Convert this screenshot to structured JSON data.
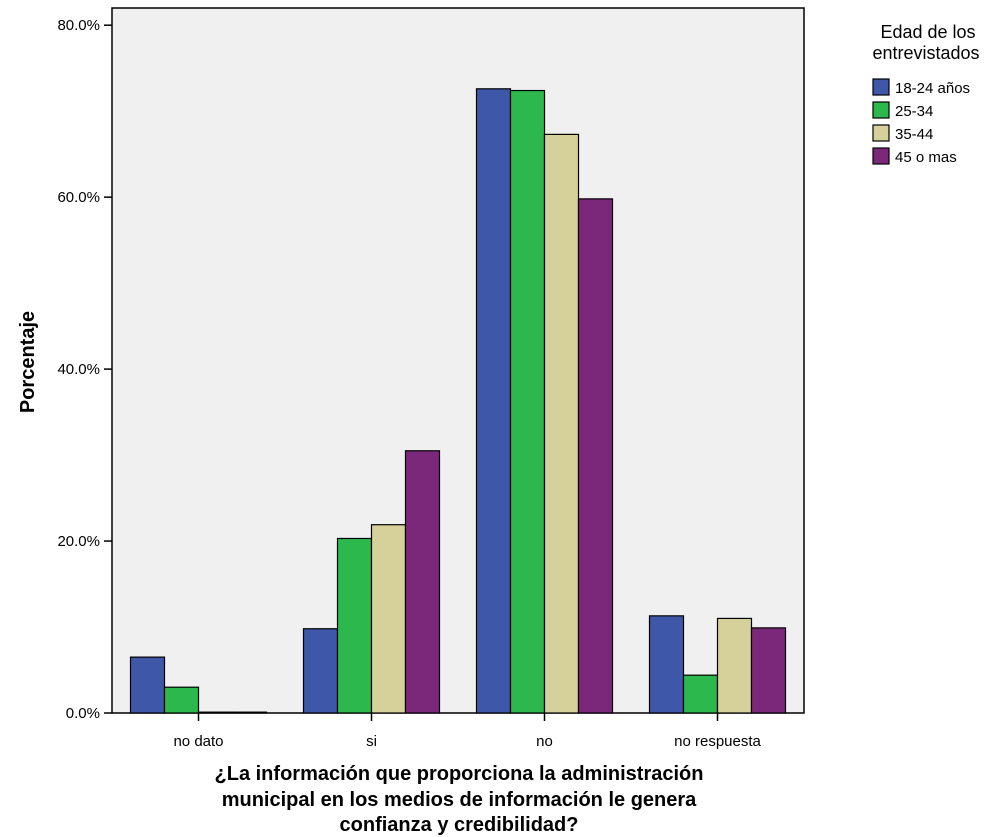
{
  "chart_data": {
    "type": "bar",
    "title": "",
    "xlabel_lines": [
      "¿La información que proporciona la administración",
      "municipal en los medios de información le genera",
      "confianza y credibilidad?"
    ],
    "ylabel": "Porcentaje",
    "ylim": [
      0,
      82
    ],
    "yticks": [
      0,
      20,
      40,
      60,
      80
    ],
    "ytick_labels": [
      "0.0%",
      "20.0%",
      "40.0%",
      "60.0%",
      "80.0%"
    ],
    "categories": [
      "no dato",
      "si",
      "no",
      "no respuesta"
    ],
    "legend_title_lines": [
      "Edad de los",
      "entrevistados"
    ],
    "legend_position": "right",
    "grid": false,
    "plot_background": "#f0f0f0",
    "series": [
      {
        "name": "18-24 años",
        "color": "#3f57a8",
        "values": [
          6.5,
          9.8,
          72.6,
          11.3
        ]
      },
      {
        "name": "25-34",
        "color": "#2db84d",
        "values": [
          3.0,
          20.3,
          72.4,
          4.4
        ]
      },
      {
        "name": "35-44",
        "color": "#d6d09b",
        "values": [
          0.1,
          21.9,
          67.3,
          11.0
        ]
      },
      {
        "name": "45 o mas",
        "color": "#7b287b",
        "values": [
          0.1,
          30.5,
          59.8,
          9.9
        ]
      }
    ]
  }
}
